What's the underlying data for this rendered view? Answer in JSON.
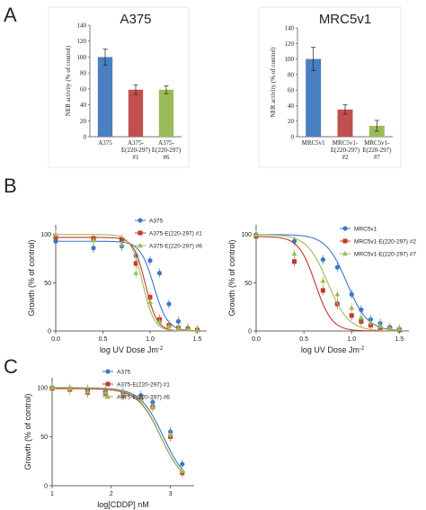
{
  "panel_labels": {
    "a": "A",
    "b": "B",
    "c": "C"
  },
  "colors": {
    "blue": "#3b78c7",
    "red": "#c0392b",
    "green": "#9bbb59",
    "bar_blue": "#4a7fc1",
    "bar_red": "#c0504d",
    "bar_green": "#9bbb59"
  },
  "chart_data": [
    {
      "type": "bar",
      "panel": "A",
      "title": "A375",
      "categories": [
        "A375",
        "A375-\nE(220-297)\n#1",
        "A375-\nE(220-297)\n#6"
      ],
      "values": [
        100,
        59,
        59
      ],
      "errors": [
        10,
        6,
        5
      ],
      "bar_colors": [
        "#4a7fc1",
        "#c0504d",
        "#9bbb59"
      ],
      "ylabel": "NER activity (% of control)",
      "ylim": [
        0,
        140
      ],
      "yticks": [
        0,
        20,
        40,
        60,
        80,
        100,
        120,
        140
      ],
      "grid": false
    },
    {
      "type": "bar",
      "panel": "A",
      "title": "MRC5v1",
      "categories": [
        "MRC5v1",
        "MRC5v1-\nE(220-297)\n#2",
        "MRC5v1-\nE(220-297)\n#7"
      ],
      "values": [
        100,
        35,
        14
      ],
      "errors": [
        15,
        6,
        7
      ],
      "bar_colors": [
        "#4a7fc1",
        "#c0504d",
        "#9bbb59"
      ],
      "ylabel": "NER activity (% of control)",
      "ylim": [
        0,
        140
      ],
      "yticks": [
        0,
        20,
        40,
        60,
        80,
        100,
        120,
        140
      ],
      "grid": false
    },
    {
      "type": "line",
      "panel": "B",
      "xlabel": "log UV Dose Jm",
      "xlabel_sup": "-2",
      "ylabel": "Growth (% of control)",
      "xlim": [
        0,
        1.6
      ],
      "ylim": [
        0,
        110
      ],
      "xticks": [
        0.0,
        0.5,
        1.0,
        1.5
      ],
      "yticks": [
        0,
        50,
        100
      ],
      "legend": "top-right",
      "series": [
        {
          "name": "A375",
          "color": "#3b78c7",
          "marker": "circle",
          "ic50": 1.04,
          "hill": 6,
          "x": [
            0,
            0.4,
            0.7,
            0.85,
            1.0,
            1.1,
            1.2,
            1.3,
            1.4,
            1.5
          ],
          "y": [
            93,
            86,
            88,
            78,
            73,
            60,
            28,
            10,
            3,
            1
          ]
        },
        {
          "name": "A375-E(220-297) #1",
          "color": "#c0392b",
          "marker": "square",
          "ic50": 0.95,
          "hill": 7,
          "x": [
            0,
            0.4,
            0.7,
            0.85,
            1.0,
            1.1,
            1.2,
            1.3,
            1.4,
            1.5
          ],
          "y": [
            97,
            96,
            95,
            70,
            35,
            12,
            6,
            3,
            2,
            1
          ]
        },
        {
          "name": "A375-E(220-297) #6",
          "color": "#9bbb59",
          "marker": "triangle",
          "ic50": 0.92,
          "hill": 7,
          "x": [
            0,
            0.4,
            0.7,
            0.85,
            1.0,
            1.1,
            1.2,
            1.3,
            1.4,
            1.5
          ],
          "y": [
            100,
            94,
            90,
            60,
            30,
            10,
            5,
            3,
            2,
            1
          ]
        }
      ]
    },
    {
      "type": "line",
      "panel": "B",
      "xlabel": "log UV Dose Jm",
      "xlabel_sup": "-2",
      "ylabel": "Growth (% of control)",
      "xlim": [
        0,
        1.6
      ],
      "ylim": [
        0,
        110
      ],
      "xticks": [
        0.0,
        0.5,
        1.0,
        1.5
      ],
      "yticks": [
        0,
        50,
        100
      ],
      "legend": "top-right",
      "series": [
        {
          "name": "MRC5v1",
          "color": "#3b78c7",
          "marker": "circle",
          "ic50": 0.95,
          "hill": 4,
          "x": [
            0,
            0.4,
            0.7,
            0.85,
            1.0,
            1.1,
            1.2,
            1.3,
            1.4,
            1.5
          ],
          "y": [
            100,
            93,
            74,
            66,
            38,
            22,
            12,
            8,
            4,
            2
          ]
        },
        {
          "name": "MRC5v1-E(220-297) #2",
          "color": "#c0392b",
          "marker": "square",
          "ic50": 0.62,
          "hill": 5,
          "x": [
            0,
            0.4,
            0.7,
            0.85,
            1.0,
            1.1,
            1.2,
            1.3,
            1.4,
            1.5
          ],
          "y": [
            98,
            72,
            42,
            28,
            16,
            10,
            6,
            3,
            2,
            1
          ]
        },
        {
          "name": "MRC5v1-E(220-297) #7",
          "color": "#9bbb59",
          "marker": "triangle",
          "ic50": 0.75,
          "hill": 4,
          "x": [
            0,
            0.4,
            0.7,
            0.85,
            1.0,
            1.1,
            1.2,
            1.3,
            1.4,
            1.5
          ],
          "y": [
            100,
            80,
            52,
            38,
            24,
            14,
            9,
            5,
            3,
            2
          ]
        }
      ]
    },
    {
      "type": "line",
      "panel": "C",
      "xlabel": "log[CDDP] nM",
      "ylabel": "Growth (% of control)",
      "xlim": [
        1,
        3.4
      ],
      "ylim": [
        0,
        110
      ],
      "xticks": [
        1,
        2,
        3
      ],
      "yticks": [
        0,
        50,
        100
      ],
      "legend": "top-left",
      "series": [
        {
          "name": "A375",
          "color": "#3b78c7",
          "marker": "circle",
          "ic50": 2.88,
          "hill": 2.2,
          "x": [
            1,
            1.3,
            1.6,
            1.9,
            2.2,
            2.5,
            2.7,
            3.0,
            3.2
          ],
          "y": [
            100,
            99,
            98,
            96,
            95,
            92,
            85,
            55,
            22
          ]
        },
        {
          "name": "A375-E(220-297) #1",
          "color": "#c0392b",
          "marker": "square",
          "ic50": 2.84,
          "hill": 2.2,
          "x": [
            1,
            1.3,
            1.6,
            1.9,
            2.2,
            2.5,
            2.7,
            3.0,
            3.2
          ],
          "y": [
            99,
            98,
            95,
            94,
            92,
            88,
            80,
            50,
            13
          ]
        },
        {
          "name": "A375-E(220-297) #6",
          "color": "#9bbb59",
          "marker": "triangle",
          "ic50": 2.84,
          "hill": 2.2,
          "x": [
            1,
            1.3,
            1.6,
            1.9,
            2.2,
            2.5,
            2.7,
            3.0,
            3.2
          ],
          "y": [
            100,
            99,
            96,
            95,
            93,
            88,
            80,
            52,
            15
          ]
        }
      ]
    }
  ]
}
